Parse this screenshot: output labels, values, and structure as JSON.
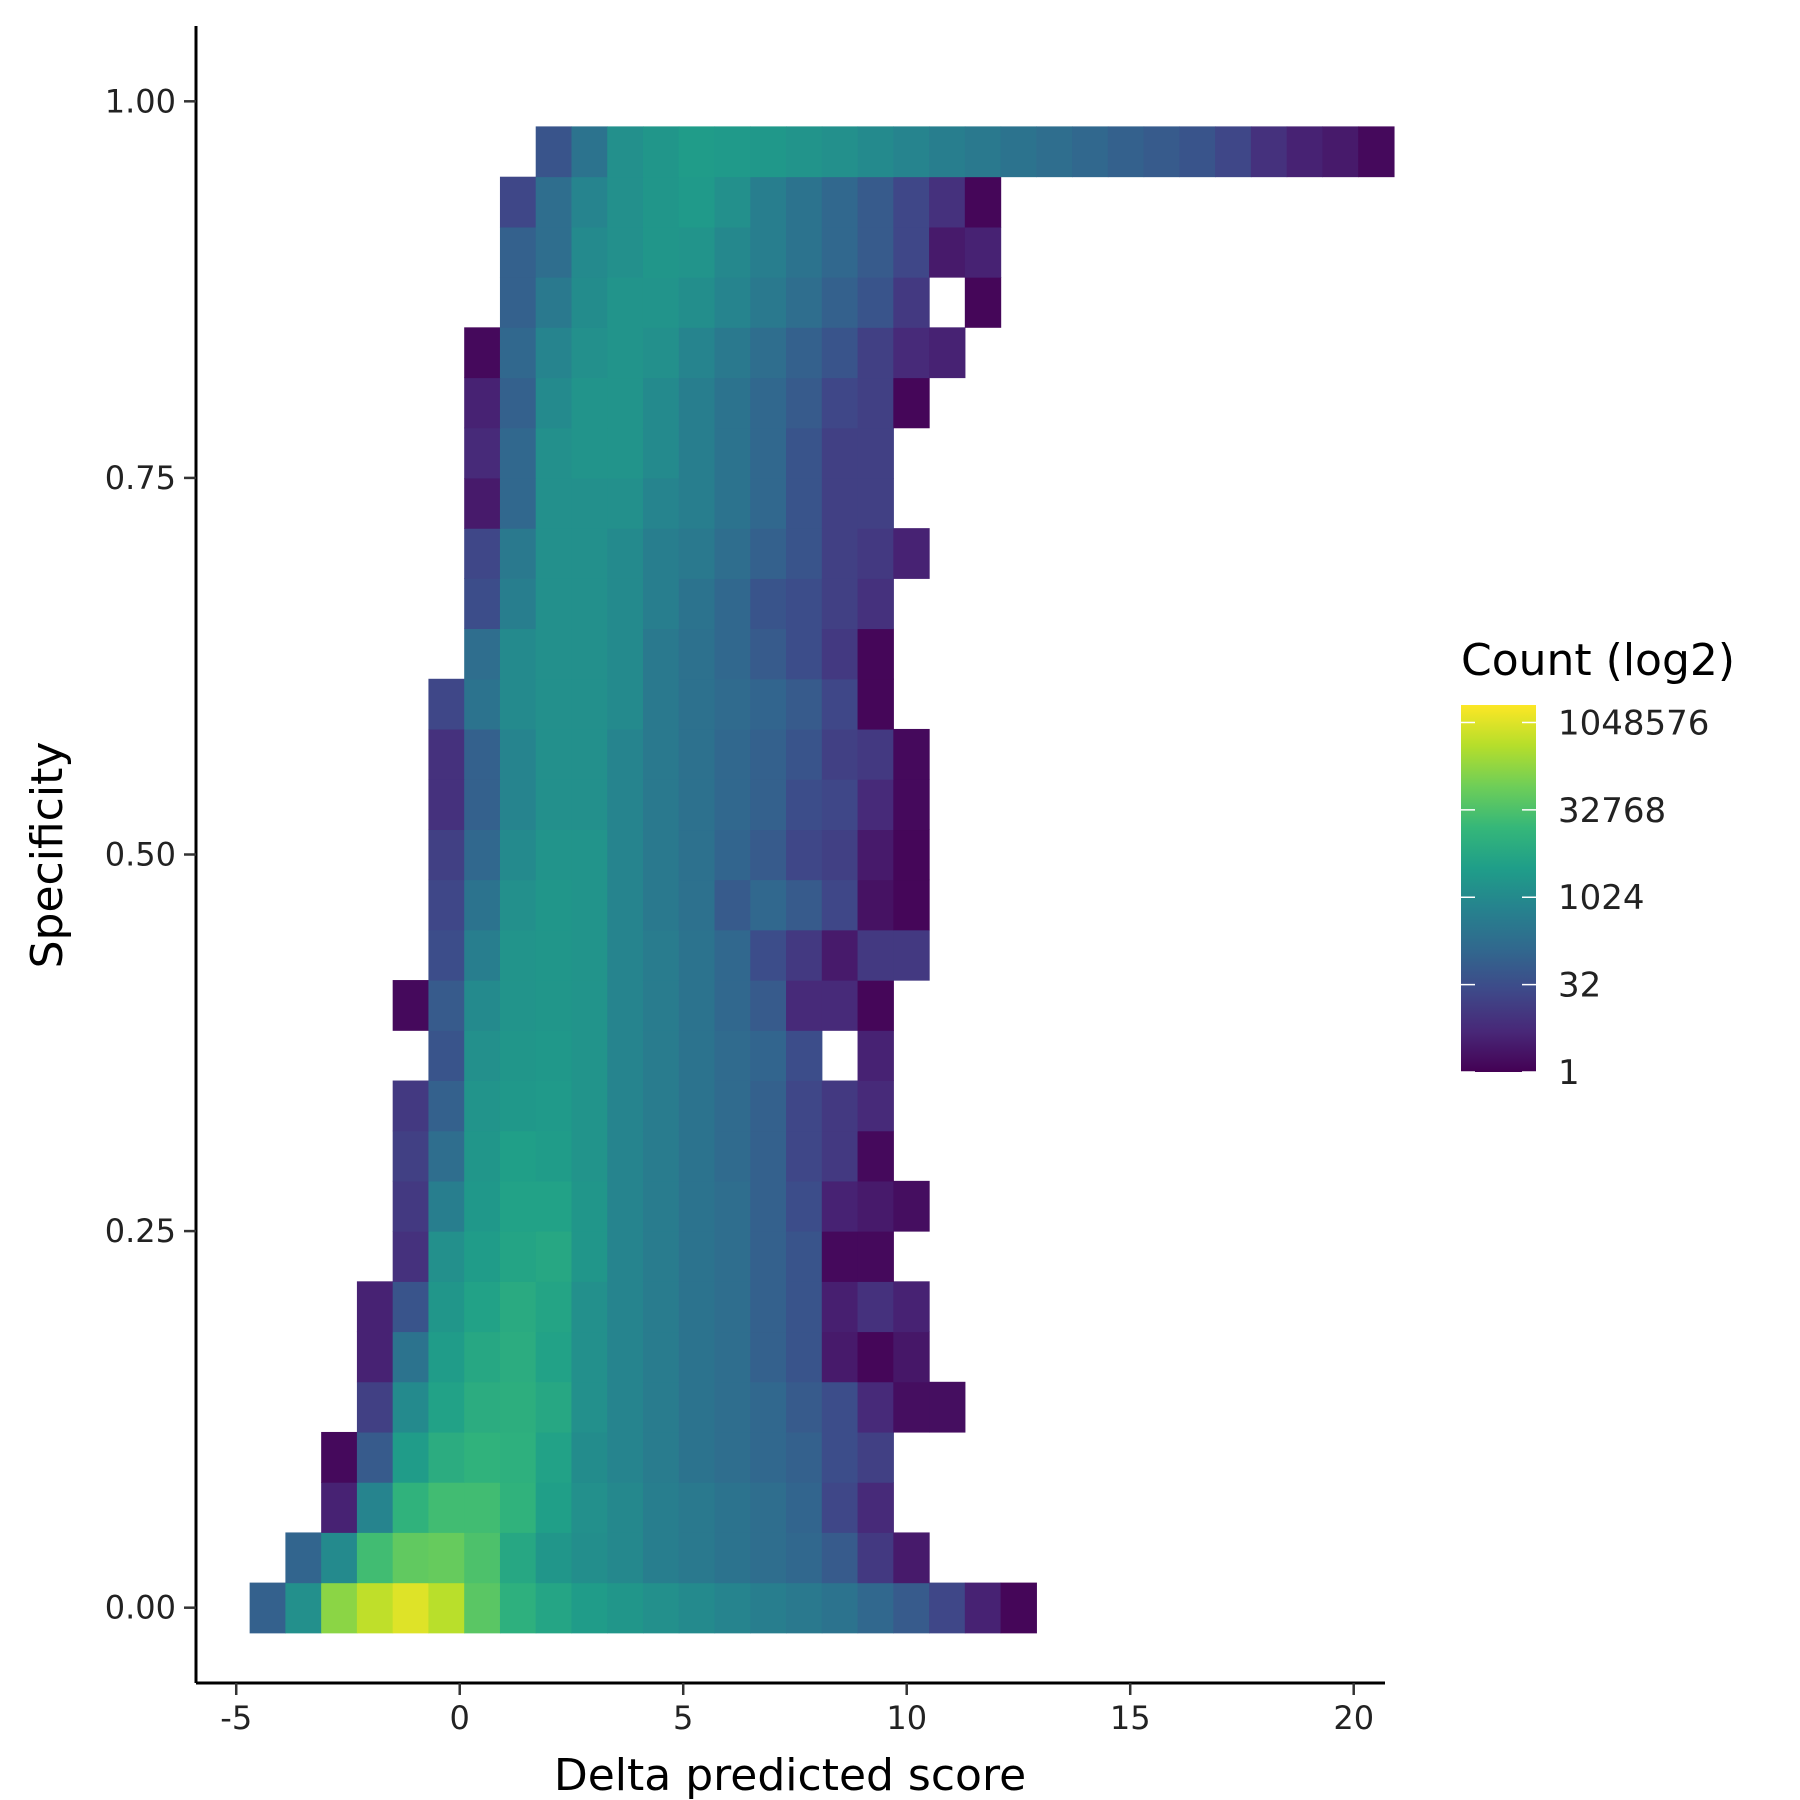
{
  "chart_data": {
    "type": "heatmap",
    "xlabel": "Delta predicted score",
    "ylabel": "Specificity",
    "xlim": [
      -5.9,
      20.7
    ],
    "ylim": [
      -0.05,
      1.05
    ],
    "x_ticks": [
      -5,
      0,
      5,
      10,
      15,
      20
    ],
    "x_tick_labels": [
      "-5",
      "0",
      "5",
      "10",
      "15",
      "20"
    ],
    "y_ticks": [
      0.0,
      0.25,
      0.5,
      0.75,
      1.0
    ],
    "y_tick_labels": [
      "0.00",
      "0.25",
      "0.50",
      "0.75",
      "1.00"
    ],
    "bin_width_x": 0.8,
    "bin_height_y": 0.0333,
    "x_bin_start": -4.7,
    "grid": false,
    "legend": {
      "title": "Count (log2)",
      "position": "right",
      "scale": "log2",
      "domain_log2": [
        0,
        21
      ],
      "breaks_log2": [
        0,
        5,
        10,
        15,
        20
      ],
      "labels": [
        "1",
        "32",
        "1024",
        "32768",
        "1048576"
      ]
    },
    "colormap": [
      "#440154",
      "#482878",
      "#3e4989",
      "#31688e",
      "#26828e",
      "#1f9e89",
      "#35b779",
      "#6ece58",
      "#b5de2b",
      "#fde725"
    ],
    "cell_value_unit": "log2(count)",
    "cells_by_row": [
      {
        "y": 0.0,
        "start_bin": 0,
        "values": [
          6.5,
          10.5,
          17.3,
          19.0,
          20.0,
          18.8,
          15.5,
          13.3,
          12.3,
          11.5,
          11.0,
          10.5,
          10.0,
          9.5,
          9.0,
          8.5,
          8.0,
          7.0,
          6.0,
          4.5,
          2.0,
          0.3
        ]
      },
      {
        "y": 0.0333,
        "start_bin": 1,
        "values": [
          6.8,
          10.0,
          14.5,
          15.8,
          16.0,
          15.0,
          12.5,
          11.0,
          10.3,
          9.8,
          9.0,
          8.5,
          8.0,
          7.5,
          7.0,
          6.0,
          3.5,
          1.5
        ]
      },
      {
        "y": 0.0667,
        "start_bin": 2,
        "values": [
          2.0,
          9.5,
          13.5,
          14.5,
          14.5,
          13.5,
          11.8,
          10.5,
          9.8,
          9.0,
          8.5,
          8.0,
          7.5,
          6.8,
          4.5,
          2.5
        ]
      },
      {
        "y": 0.1,
        "start_bin": 2,
        "values": [
          0.5,
          6.0,
          11.5,
          13.0,
          13.5,
          13.3,
          12.0,
          10.2,
          9.5,
          8.8,
          8.0,
          7.5,
          7.0,
          6.5,
          5.0,
          4.0
        ]
      },
      {
        "y": 0.1333,
        "start_bin": 3,
        "values": [
          4.0,
          10.0,
          12.0,
          13.0,
          13.2,
          12.5,
          10.5,
          9.5,
          8.8,
          8.0,
          7.5,
          7.0,
          6.0,
          5.0,
          2.5,
          0.8,
          0.8
        ]
      },
      {
        "y": 0.1667,
        "start_bin": 3,
        "values": [
          2.0,
          8.0,
          11.5,
          12.5,
          13.0,
          12.0,
          10.5,
          9.5,
          8.8,
          8.0,
          7.5,
          6.5,
          5.5,
          1.5,
          0.3,
          1.3
        ]
      },
      {
        "y": 0.2,
        "start_bin": 3,
        "values": [
          2.0,
          5.5,
          11.0,
          12.0,
          12.8,
          12.2,
          10.5,
          9.5,
          8.8,
          8.0,
          7.5,
          6.5,
          5.5,
          1.8,
          3.0,
          2.0
        ]
      },
      {
        "y": 0.2333,
        "start_bin": 4,
        "values": [
          3.0,
          10.5,
          11.5,
          12.2,
          12.5,
          11.0,
          9.5,
          8.8,
          8.0,
          7.5,
          6.5,
          5.5,
          0.5,
          0.5
        ]
      },
      {
        "y": 0.2667,
        "start_bin": 4,
        "values": [
          3.5,
          9.0,
          11.2,
          12.0,
          12.0,
          11.0,
          9.5,
          8.8,
          8.0,
          7.5,
          6.5,
          5.0,
          2.0,
          1.5,
          0.8
        ]
      },
      {
        "y": 0.3,
        "start_bin": 4,
        "values": [
          4.0,
          7.5,
          11.0,
          11.8,
          11.5,
          10.8,
          9.5,
          8.8,
          8.0,
          7.3,
          6.5,
          4.5,
          3.5,
          0.5
        ]
      },
      {
        "y": 0.3333,
        "start_bin": 4,
        "values": [
          3.5,
          6.5,
          10.8,
          11.2,
          11.3,
          10.8,
          9.5,
          8.8,
          8.0,
          7.3,
          6.5,
          4.5,
          3.5,
          2.5
        ]
      },
      {
        "y": 0.3667,
        "start_bin": 5,
        "values": [
          5.5,
          10.5,
          11.0,
          11.2,
          10.8,
          9.5,
          8.8,
          8.0,
          7.3,
          6.8,
          5.0,
          null,
          2.0
        ]
      },
      {
        "y": 0.4,
        "start_bin": 4,
        "values": [
          0.5,
          6.0,
          10.0,
          10.8,
          11.0,
          10.8,
          9.5,
          8.8,
          8.0,
          7.0,
          6.0,
          2.5,
          2.5,
          0.3
        ]
      },
      {
        "y": 0.4333,
        "start_bin": 5,
        "values": [
          5.0,
          9.0,
          10.8,
          11.0,
          10.8,
          9.5,
          8.8,
          8.0,
          7.0,
          5.0,
          3.5,
          1.5,
          3.5,
          3.5
        ]
      },
      {
        "y": 0.4667,
        "start_bin": 5,
        "values": [
          4.5,
          8.0,
          10.5,
          11.0,
          10.8,
          9.5,
          8.5,
          7.8,
          6.0,
          7.0,
          6.0,
          4.5,
          1.0,
          0.3
        ]
      },
      {
        "y": 0.5,
        "start_bin": 5,
        "values": [
          4.0,
          7.0,
          10.0,
          10.8,
          10.8,
          9.5,
          8.5,
          7.8,
          6.8,
          6.0,
          4.5,
          4.0,
          1.5,
          0.3
        ]
      },
      {
        "y": 0.5333,
        "start_bin": 5,
        "values": [
          3.0,
          6.5,
          9.5,
          10.5,
          10.5,
          9.5,
          8.5,
          7.8,
          7.0,
          6.5,
          5.0,
          4.5,
          2.5,
          0.5
        ]
      },
      {
        "y": 0.5667,
        "start_bin": 5,
        "values": [
          3.0,
          6.5,
          9.5,
          10.5,
          10.5,
          9.5,
          8.5,
          7.8,
          7.0,
          6.5,
          5.5,
          4.0,
          3.5,
          0.5
        ]
      },
      {
        "y": 0.6,
        "start_bin": 5,
        "values": [
          4.5,
          8.0,
          10.0,
          10.5,
          10.5,
          10.0,
          8.5,
          7.8,
          7.3,
          6.8,
          6.0,
          4.5,
          0.3
        ]
      },
      {
        "y": 0.6333,
        "start_bin": 6,
        "values": [
          7.5,
          10.0,
          10.5,
          10.5,
          10.0,
          8.5,
          7.8,
          7.0,
          6.0,
          5.0,
          3.5,
          0.3
        ]
      },
      {
        "y": 0.6667,
        "start_bin": 6,
        "values": [
          5.0,
          9.0,
          10.5,
          10.5,
          10.0,
          9.0,
          8.0,
          7.0,
          5.5,
          5.0,
          4.0,
          3.0
        ]
      },
      {
        "y": 0.7,
        "start_bin": 6,
        "values": [
          4.5,
          8.5,
          10.5,
          10.5,
          10.0,
          9.0,
          8.5,
          7.5,
          6.5,
          5.5,
          4.0,
          3.5,
          2.0
        ]
      },
      {
        "y": 0.7333,
        "start_bin": 6,
        "values": [
          1.5,
          7.0,
          10.5,
          10.5,
          10.5,
          9.5,
          9.0,
          8.0,
          7.0,
          5.5,
          4.0,
          4.0
        ]
      },
      {
        "y": 0.7667,
        "start_bin": 6,
        "values": [
          2.5,
          7.0,
          10.5,
          10.8,
          10.8,
          10.0,
          9.0,
          8.0,
          7.0,
          5.5,
          4.0,
          4.0
        ]
      },
      {
        "y": 0.8,
        "start_bin": 6,
        "values": [
          2.0,
          6.5,
          10.0,
          10.8,
          10.8,
          10.0,
          9.0,
          8.0,
          7.0,
          6.0,
          4.5,
          4.0,
          0.3
        ]
      },
      {
        "y": 0.8333,
        "start_bin": 6,
        "values": [
          0.5,
          7.0,
          9.5,
          10.5,
          10.8,
          10.5,
          9.5,
          8.5,
          7.5,
          6.5,
          5.5,
          4.0,
          2.5,
          2.0
        ]
      },
      {
        "y": 0.8667,
        "start_bin": 7,
        "values": [
          6.5,
          8.5,
          10.2,
          10.8,
          10.8,
          10.3,
          9.5,
          8.5,
          7.5,
          6.5,
          5.5,
          3.5,
          null,
          0.3
        ]
      },
      {
        "y": 0.9,
        "start_bin": 7,
        "values": [
          6.5,
          7.5,
          10.0,
          10.5,
          11.0,
          10.8,
          9.8,
          9.0,
          8.0,
          7.0,
          6.0,
          4.5,
          1.5,
          2.0
        ]
      },
      {
        "y": 0.9333,
        "start_bin": 7,
        "values": [
          4.5,
          7.5,
          9.5,
          10.5,
          11.0,
          11.3,
          10.5,
          9.0,
          8.0,
          7.0,
          6.0,
          4.5,
          3.0,
          0.3
        ]
      },
      {
        "y": 0.9667,
        "start_bin": 8,
        "values": [
          5.5,
          8.0,
          10.5,
          11.0,
          11.5,
          11.3,
          11.2,
          10.8,
          10.5,
          10.0,
          9.5,
          9.0,
          8.5,
          8.0,
          7.5,
          7.0,
          6.5,
          6.0,
          5.5,
          4.5,
          3.0,
          2.0,
          1.5,
          0.5
        ]
      }
    ]
  }
}
